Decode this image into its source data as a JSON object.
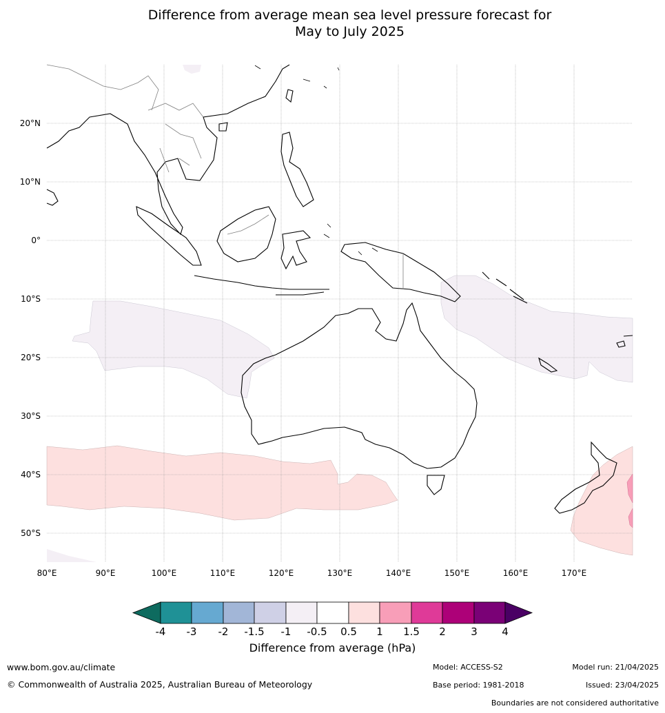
{
  "title": {
    "line1": "Difference from average mean sea level pressure forecast for",
    "line2": "May to July 2025"
  },
  "map": {
    "lon_labels": [
      "80°E",
      "90°E",
      "100°E",
      "110°E",
      "120°E",
      "130°E",
      "140°E",
      "150°E",
      "160°E",
      "170°E"
    ],
    "lat_labels": [
      "20°N",
      "10°N",
      "0°",
      "10°S",
      "20°S",
      "30°S",
      "40°S",
      "50°S"
    ]
  },
  "colorbar": {
    "title": "Difference from average (hPa)",
    "tick_labels": [
      "-4",
      "-3",
      "-2",
      "-1.5",
      "-1",
      "-0.5",
      "0.5",
      "1",
      "1.5",
      "2",
      "3",
      "4"
    ],
    "colors": [
      "#0e6b5f",
      "#1f9196",
      "#66a9d1",
      "#a2b6d7",
      "#cfd0e6",
      "#f4eff5",
      "#ffffff",
      "#fde0df",
      "#f89eb8",
      "#df3a98",
      "#ad0178",
      "#7a0176",
      "#4a0064"
    ]
  },
  "footer": {
    "website": "www.bom.gov.au/climate",
    "copyright": "© Commonwealth of Australia 2025, Australian Bureau of Meteorology",
    "model": "Model: ACCESS-S2",
    "base_period": "Base period: 1981-2018",
    "model_run": "Model run: 21/04/2025",
    "issued": "Issued: 23/04/2025",
    "disclaimer": "Boundaries are not considered authoritative"
  }
}
